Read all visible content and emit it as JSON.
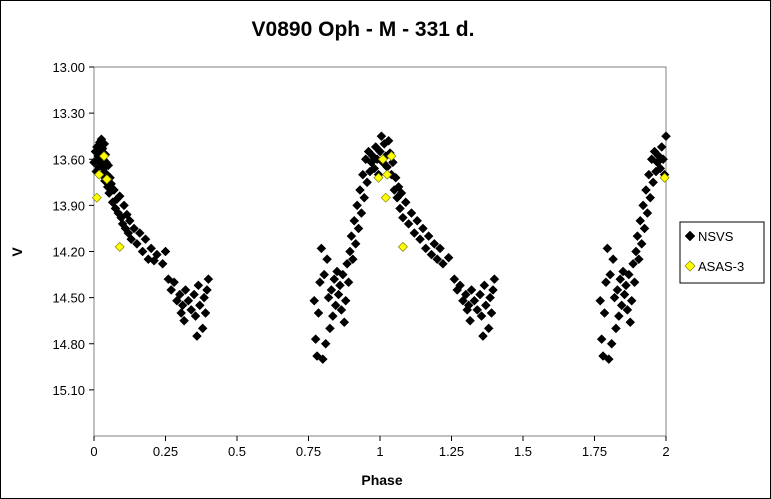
{
  "chart_data": {
    "type": "scatter",
    "title": "V0890 Oph - M - 331 d.",
    "xlabel": "Phase",
    "ylabel": "V",
    "xlim": [
      0,
      2
    ],
    "ylim": [
      13.0,
      15.4
    ],
    "y_inverted": true,
    "grid": false,
    "legend_position": "right",
    "x_ticks": [
      "0",
      "0.25",
      "0.5",
      "0.75",
      "1",
      "1.25",
      "1.5",
      "1.75",
      "2"
    ],
    "y_ticks": [
      "13.00",
      "13.30",
      "13.60",
      "13.90",
      "14.20",
      "14.50",
      "14.80",
      "15.10"
    ],
    "series": [
      {
        "name": "NSVS",
        "color": "#000000",
        "marker": "diamond",
        "points": [
          [
            0.0,
            13.62
          ],
          [
            0.005,
            13.55
          ],
          [
            0.008,
            13.68
          ],
          [
            0.01,
            13.52
          ],
          [
            0.012,
            13.6
          ],
          [
            0.015,
            13.58
          ],
          [
            0.017,
            13.65
          ],
          [
            0.02,
            13.49
          ],
          [
            0.022,
            13.56
          ],
          [
            0.024,
            13.63
          ],
          [
            0.026,
            13.47
          ],
          [
            0.028,
            13.7
          ],
          [
            0.03,
            13.53
          ],
          [
            0.032,
            13.6
          ],
          [
            0.034,
            13.66
          ],
          [
            0.036,
            13.5
          ],
          [
            0.038,
            13.74
          ],
          [
            0.04,
            13.57
          ],
          [
            0.042,
            13.62
          ],
          [
            0.045,
            13.7
          ],
          [
            0.048,
            13.78
          ],
          [
            0.05,
            13.64
          ],
          [
            0.053,
            13.82
          ],
          [
            0.056,
            13.72
          ],
          [
            0.06,
            13.76
          ],
          [
            0.065,
            13.88
          ],
          [
            0.07,
            13.8
          ],
          [
            0.075,
            13.92
          ],
          [
            0.08,
            13.86
          ],
          [
            0.085,
            13.95
          ],
          [
            0.09,
            13.84
          ],
          [
            0.095,
            13.98
          ],
          [
            0.1,
            14.02
          ],
          [
            0.105,
            13.9
          ],
          [
            0.11,
            14.05
          ],
          [
            0.115,
            13.96
          ],
          [
            0.12,
            14.08
          ],
          [
            0.125,
            14.0
          ],
          [
            0.13,
            14.12
          ],
          [
            0.14,
            14.05
          ],
          [
            0.15,
            14.15
          ],
          [
            0.16,
            14.08
          ],
          [
            0.17,
            14.2
          ],
          [
            0.18,
            14.12
          ],
          [
            0.19,
            14.25
          ],
          [
            0.2,
            14.18
          ],
          [
            0.21,
            14.26
          ],
          [
            0.22,
            14.22
          ],
          [
            0.24,
            14.28
          ],
          [
            0.25,
            14.2
          ],
          [
            0.26,
            14.38
          ],
          [
            0.27,
            14.45
          ],
          [
            0.28,
            14.4
          ],
          [
            0.29,
            14.52
          ],
          [
            0.3,
            14.48
          ],
          [
            0.305,
            14.6
          ],
          [
            0.31,
            14.55
          ],
          [
            0.315,
            14.65
          ],
          [
            0.32,
            14.45
          ],
          [
            0.33,
            14.52
          ],
          [
            0.34,
            14.58
          ],
          [
            0.35,
            14.48
          ],
          [
            0.355,
            14.62
          ],
          [
            0.36,
            14.75
          ],
          [
            0.365,
            14.42
          ],
          [
            0.37,
            14.55
          ],
          [
            0.38,
            14.7
          ],
          [
            0.385,
            14.5
          ],
          [
            0.39,
            14.6
          ],
          [
            0.395,
            14.45
          ],
          [
            0.4,
            14.38
          ],
          [
            0.77,
            14.52
          ],
          [
            0.775,
            14.77
          ],
          [
            0.78,
            14.88
          ],
          [
            0.785,
            14.6
          ],
          [
            0.79,
            14.4
          ],
          [
            0.795,
            14.18
          ],
          [
            0.8,
            14.9
          ],
          [
            0.805,
            14.35
          ],
          [
            0.81,
            14.8
          ],
          [
            0.815,
            14.25
          ],
          [
            0.82,
            14.5
          ],
          [
            0.825,
            14.7
          ],
          [
            0.83,
            14.45
          ],
          [
            0.835,
            14.62
          ],
          [
            0.84,
            14.38
          ],
          [
            0.845,
            14.55
          ],
          [
            0.85,
            14.33
          ],
          [
            0.855,
            14.48
          ],
          [
            0.86,
            14.42
          ],
          [
            0.865,
            14.58
          ],
          [
            0.87,
            14.35
          ],
          [
            0.875,
            14.66
          ],
          [
            0.88,
            14.52
          ],
          [
            0.885,
            14.28
          ],
          [
            0.89,
            14.4
          ],
          [
            0.895,
            14.2
          ],
          [
            0.9,
            14.1
          ],
          [
            0.905,
            14.25
          ],
          [
            0.91,
            14.0
          ],
          [
            0.915,
            14.15
          ],
          [
            0.92,
            13.9
          ],
          [
            0.925,
            14.05
          ],
          [
            0.93,
            13.8
          ],
          [
            0.935,
            13.95
          ],
          [
            0.94,
            13.7
          ],
          [
            0.945,
            13.85
          ],
          [
            0.95,
            13.6
          ],
          [
            0.955,
            13.75
          ],
          [
            0.96,
            13.55
          ],
          [
            0.965,
            13.68
          ],
          [
            0.97,
            13.62
          ],
          [
            0.975,
            13.58
          ],
          [
            0.98,
            13.66
          ],
          [
            0.985,
            13.52
          ],
          [
            0.99,
            13.6
          ],
          [
            0.995,
            13.7
          ],
          [
            1.0,
            13.55
          ],
          [
            1.005,
            13.45
          ],
          [
            1.01,
            13.62
          ],
          [
            1.015,
            13.5
          ],
          [
            1.02,
            13.58
          ],
          [
            1.025,
            13.65
          ],
          [
            1.03,
            13.48
          ],
          [
            1.035,
            13.56
          ],
          [
            1.04,
            13.7
          ],
          [
            1.045,
            13.62
          ],
          [
            1.05,
            13.8
          ],
          [
            1.055,
            13.72
          ],
          [
            1.06,
            13.85
          ],
          [
            1.065,
            13.78
          ],
          [
            1.07,
            13.92
          ],
          [
            1.075,
            13.82
          ],
          [
            1.08,
            13.98
          ],
          [
            1.09,
            13.88
          ],
          [
            1.1,
            14.02
          ],
          [
            1.11,
            13.95
          ],
          [
            1.12,
            14.08
          ],
          [
            1.13,
            14.0
          ],
          [
            1.14,
            14.12
          ],
          [
            1.15,
            14.05
          ],
          [
            1.16,
            14.18
          ],
          [
            1.17,
            14.1
          ],
          [
            1.18,
            14.22
          ],
          [
            1.19,
            14.15
          ],
          [
            1.2,
            14.25
          ],
          [
            1.21,
            14.18
          ],
          [
            1.22,
            14.28
          ],
          [
            1.24,
            14.24
          ],
          [
            1.26,
            14.38
          ],
          [
            1.27,
            14.45
          ],
          [
            1.28,
            14.42
          ],
          [
            1.29,
            14.52
          ],
          [
            1.3,
            14.48
          ],
          [
            1.305,
            14.58
          ],
          [
            1.31,
            14.55
          ],
          [
            1.315,
            14.65
          ],
          [
            1.32,
            14.45
          ],
          [
            1.33,
            14.52
          ],
          [
            1.34,
            14.58
          ],
          [
            1.35,
            14.48
          ],
          [
            1.355,
            14.62
          ],
          [
            1.36,
            14.75
          ],
          [
            1.365,
            14.42
          ],
          [
            1.37,
            14.55
          ],
          [
            1.38,
            14.7
          ],
          [
            1.385,
            14.5
          ],
          [
            1.39,
            14.6
          ],
          [
            1.395,
            14.45
          ],
          [
            1.4,
            14.38
          ],
          [
            1.77,
            14.52
          ],
          [
            1.775,
            14.77
          ],
          [
            1.78,
            14.88
          ],
          [
            1.785,
            14.6
          ],
          [
            1.79,
            14.4
          ],
          [
            1.795,
            14.18
          ],
          [
            1.8,
            14.9
          ],
          [
            1.805,
            14.35
          ],
          [
            1.81,
            14.8
          ],
          [
            1.815,
            14.25
          ],
          [
            1.82,
            14.5
          ],
          [
            1.825,
            14.7
          ],
          [
            1.83,
            14.45
          ],
          [
            1.835,
            14.62
          ],
          [
            1.84,
            14.38
          ],
          [
            1.845,
            14.55
          ],
          [
            1.85,
            14.33
          ],
          [
            1.855,
            14.48
          ],
          [
            1.86,
            14.42
          ],
          [
            1.865,
            14.58
          ],
          [
            1.87,
            14.35
          ],
          [
            1.875,
            14.66
          ],
          [
            1.88,
            14.52
          ],
          [
            1.885,
            14.28
          ],
          [
            1.89,
            14.4
          ],
          [
            1.895,
            14.2
          ],
          [
            1.9,
            14.1
          ],
          [
            1.905,
            14.25
          ],
          [
            1.91,
            14.0
          ],
          [
            1.915,
            14.15
          ],
          [
            1.92,
            13.9
          ],
          [
            1.925,
            14.05
          ],
          [
            1.93,
            13.8
          ],
          [
            1.935,
            13.95
          ],
          [
            1.94,
            13.7
          ],
          [
            1.945,
            13.85
          ],
          [
            1.95,
            13.6
          ],
          [
            1.955,
            13.75
          ],
          [
            1.96,
            13.55
          ],
          [
            1.965,
            13.68
          ],
          [
            1.97,
            13.62
          ],
          [
            1.975,
            13.58
          ],
          [
            1.98,
            13.66
          ],
          [
            1.985,
            13.52
          ],
          [
            1.99,
            13.6
          ],
          [
            1.995,
            13.7
          ],
          [
            2.0,
            13.45
          ]
        ]
      },
      {
        "name": "ASAS-3",
        "color": "#ffff00",
        "marker": "diamond",
        "points": [
          [
            0.01,
            13.85
          ],
          [
            0.018,
            13.7
          ],
          [
            0.035,
            13.58
          ],
          [
            0.045,
            13.73
          ],
          [
            0.09,
            14.17
          ],
          [
            0.995,
            13.72
          ],
          [
            1.01,
            13.6
          ],
          [
            1.02,
            13.85
          ],
          [
            1.025,
            13.7
          ],
          [
            1.04,
            13.58
          ],
          [
            1.08,
            14.17
          ],
          [
            1.995,
            13.72
          ]
        ]
      }
    ]
  }
}
